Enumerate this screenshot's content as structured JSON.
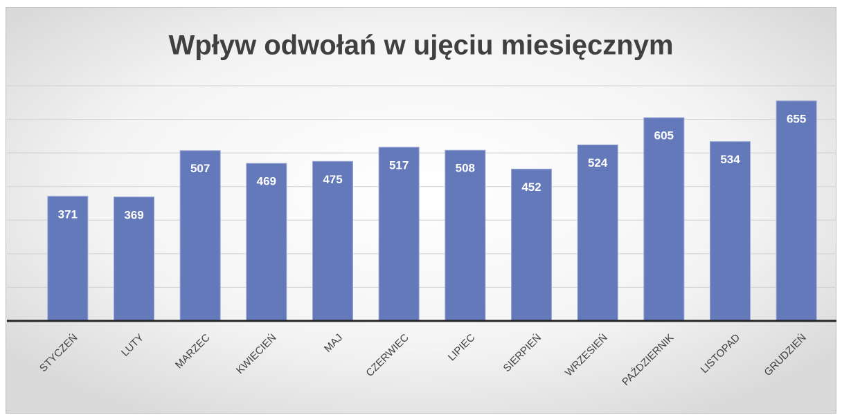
{
  "chart_data": {
    "type": "bar",
    "title": "Wpływ odwołań w ujęciu miesięcznym",
    "categories": [
      "STYCZEŃ",
      "LUTY",
      "MARZEC",
      "KWIECIEŃ",
      "MAJ",
      "CZERWIEC",
      "LIPIEC",
      "SIERPIEŃ",
      "WRZESIEŃ",
      "PAŹDZIERNIK",
      "LISTOPAD",
      "GRUDZIEŃ"
    ],
    "values": [
      371,
      369,
      507,
      469,
      475,
      517,
      508,
      452,
      524,
      605,
      534,
      655
    ],
    "color": "#6479ba",
    "ylim": [
      0,
      700
    ],
    "yticks": [
      0,
      100,
      200,
      300,
      400,
      500,
      600,
      700
    ],
    "grid": true
  }
}
